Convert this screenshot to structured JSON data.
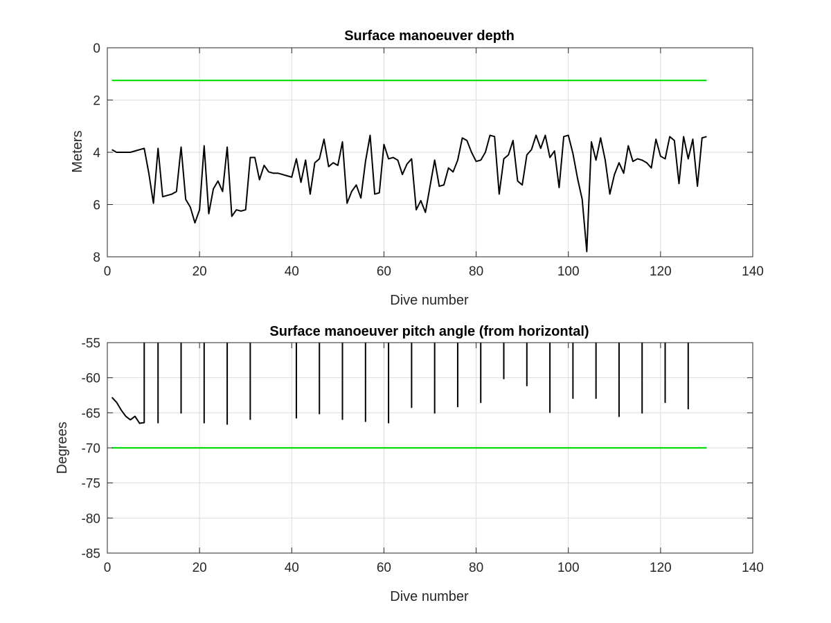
{
  "chart_data": [
    {
      "type": "line",
      "title": "Surface manoeuver depth",
      "xlabel": "Dive number",
      "ylabel": "Meters",
      "xlim": [
        0,
        140
      ],
      "ylim": [
        0,
        8
      ],
      "y_reversed": true,
      "xticks": [
        0,
        20,
        40,
        60,
        80,
        100,
        120,
        140
      ],
      "yticks": [
        0,
        2,
        4,
        6,
        8
      ],
      "grid": true,
      "colors": {
        "series": "#000000",
        "threshold": "#00dd00"
      },
      "series": [
        {
          "color": "#000000",
          "x": [
            1,
            2,
            3,
            4,
            5,
            6,
            7,
            8,
            9,
            10,
            11,
            12,
            13,
            14,
            15,
            16,
            17,
            18,
            19,
            20,
            21,
            22,
            23,
            24,
            25,
            26,
            27,
            28,
            29,
            30,
            31,
            32,
            33,
            34,
            35,
            36,
            37,
            38,
            39,
            40,
            41,
            42,
            43,
            44,
            45,
            46,
            47,
            48,
            49,
            50,
            51,
            52,
            53,
            54,
            55,
            56,
            57,
            58,
            59,
            60,
            61,
            62,
            63,
            64,
            65,
            66,
            67,
            68,
            69,
            70,
            71,
            72,
            73,
            74,
            75,
            76,
            77,
            78,
            79,
            80,
            81,
            82,
            83,
            84,
            85,
            86,
            87,
            88,
            89,
            90,
            91,
            92,
            93,
            94,
            95,
            96,
            97,
            98,
            99,
            100,
            101,
            102,
            103,
            104,
            105,
            106,
            107,
            108,
            109,
            110,
            111,
            112,
            113,
            114,
            115,
            116,
            117,
            118,
            119,
            120,
            121,
            122,
            123,
            124,
            125,
            126,
            127,
            128,
            129,
            130
          ],
          "y": [
            3.9,
            4.0,
            4.0,
            4.0,
            4.0,
            3.95,
            3.9,
            3.85,
            4.8,
            5.95,
            3.85,
            5.7,
            5.65,
            5.6,
            5.5,
            3.8,
            5.8,
            6.1,
            6.7,
            6.2,
            3.75,
            6.35,
            5.4,
            5.1,
            5.5,
            3.8,
            6.45,
            6.2,
            6.25,
            6.2,
            4.2,
            4.2,
            5.05,
            4.5,
            4.75,
            4.8,
            4.8,
            4.85,
            4.9,
            4.95,
            4.25,
            5.15,
            4.3,
            5.6,
            4.4,
            4.25,
            3.5,
            4.55,
            4.4,
            4.5,
            3.6,
            5.95,
            5.5,
            5.25,
            5.75,
            4.35,
            3.35,
            5.6,
            5.55,
            3.7,
            4.25,
            4.2,
            4.3,
            4.85,
            4.45,
            4.25,
            6.2,
            5.85,
            6.3,
            5.3,
            4.3,
            5.3,
            5.25,
            4.6,
            4.75,
            4.3,
            3.45,
            3.55,
            4.0,
            4.35,
            4.3,
            4.0,
            3.35,
            3.4,
            5.6,
            4.25,
            4.1,
            3.55,
            5.1,
            5.25,
            4.1,
            3.9,
            3.35,
            3.85,
            3.35,
            4.2,
            3.95,
            5.35,
            3.4,
            3.35,
            4.05,
            5.0,
            5.8,
            7.8,
            3.6,
            4.3,
            3.45,
            4.3,
            5.6,
            4.85,
            4.4,
            4.8,
            3.75,
            4.35,
            4.25,
            4.3,
            4.4,
            4.6,
            3.5,
            4.15,
            4.25,
            3.4,
            3.55,
            5.2,
            3.4,
            4.25,
            3.5,
            5.3,
            3.45,
            3.4
          ]
        }
      ],
      "reference_lines": [
        {
          "color": "#00dd00",
          "y": 1.25,
          "x": [
            1,
            130
          ]
        }
      ]
    },
    {
      "type": "line",
      "title": "Surface manoeuver pitch angle (from horizontal)",
      "xlabel": "Dive number",
      "ylabel": "Degrees",
      "xlim": [
        0,
        140
      ],
      "ylim": [
        -85,
        -55
      ],
      "xticks": [
        0,
        20,
        40,
        60,
        80,
        100,
        120,
        140
      ],
      "yticks": [
        -55,
        -60,
        -65,
        -70,
        -75,
        -80,
        -85
      ],
      "grid": true,
      "colors": {
        "series": "#000000",
        "threshold": "#00dd00"
      },
      "series": [
        {
          "color": "#000000",
          "x": [
            1,
            2,
            3,
            4,
            5,
            6,
            7,
            8,
            8,
            8,
            11,
            11,
            11,
            16,
            16,
            16,
            21,
            21,
            21,
            26,
            26,
            26,
            31,
            31,
            31,
            41,
            41,
            41,
            46,
            46,
            46,
            51,
            51,
            51,
            56,
            56,
            56,
            61,
            61,
            61,
            66,
            66,
            66,
            71,
            71,
            71,
            76,
            76,
            76,
            81,
            81,
            81,
            86,
            86,
            86,
            91,
            91,
            91,
            96,
            96,
            96,
            101,
            101,
            101,
            106,
            106,
            106,
            111,
            111,
            111,
            116,
            116,
            116,
            121,
            121,
            121,
            126,
            126
          ],
          "y": [
            -62.8,
            -63.5,
            -64.6,
            -65.5,
            -66.0,
            -65.5,
            -66.5,
            -66.4,
            -55,
            null,
            -66.5,
            -55,
            null,
            -65.1,
            -55,
            null,
            -66.5,
            -55,
            null,
            -66.7,
            -55,
            null,
            -66.0,
            -55,
            null,
            -65.8,
            -55,
            null,
            -65.2,
            -55,
            null,
            -66.0,
            -55,
            null,
            -66.3,
            -55,
            null,
            -66.5,
            -55,
            null,
            -64.3,
            -55,
            null,
            -65.1,
            -55,
            null,
            -64.2,
            -55,
            null,
            -63.6,
            -55,
            null,
            -60.2,
            -55,
            null,
            -61.2,
            -55,
            null,
            -65.0,
            -55,
            null,
            -63.0,
            -55,
            null,
            -63.0,
            -55,
            null,
            -65.6,
            -55,
            null,
            -65.1,
            -55,
            null,
            -63.6,
            -55,
            null,
            -64.5,
            -55
          ]
        }
      ],
      "reference_lines": [
        {
          "color": "#00dd00",
          "y": -70,
          "x": [
            1,
            130
          ]
        }
      ]
    }
  ]
}
